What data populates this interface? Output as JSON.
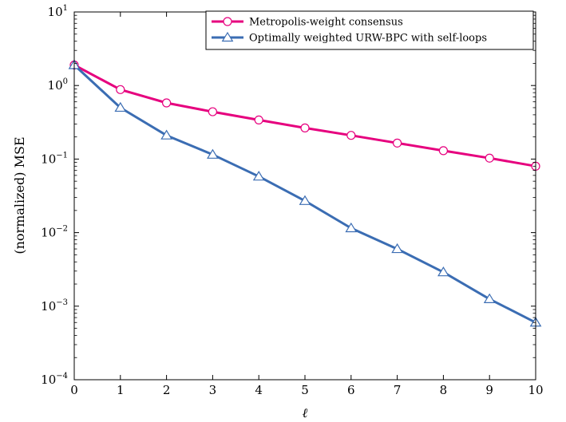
{
  "chart_data": {
    "type": "line",
    "title": "",
    "xlabel": "ℓ",
    "ylabel": "(normalized) MSE",
    "x": [
      0,
      1,
      2,
      3,
      4,
      5,
      6,
      7,
      8,
      9,
      10
    ],
    "xlim": [
      0,
      10
    ],
    "ylim": [
      0.0001,
      10
    ],
    "yscale": "log",
    "grid": false,
    "legend_position": "top-right",
    "x_ticks": [
      "0",
      "1",
      "2",
      "3",
      "4",
      "5",
      "6",
      "7",
      "8",
      "9",
      "10"
    ],
    "y_ticks": [
      {
        "base": "10",
        "exp": "1"
      },
      {
        "base": "10",
        "exp": "0"
      },
      {
        "base": "10",
        "exp": "−1"
      },
      {
        "base": "10",
        "exp": "−2"
      },
      {
        "base": "10",
        "exp": "−3"
      },
      {
        "base": "10",
        "exp": "−4"
      }
    ],
    "series": [
      {
        "name": "Metropolis-weight consensus",
        "color": "#e6007e",
        "marker": "circle",
        "values": [
          1.9,
          0.88,
          0.58,
          0.44,
          0.34,
          0.265,
          0.21,
          0.165,
          0.13,
          0.103,
          0.08
        ]
      },
      {
        "name": "Optimally weighted URW-BPC with self-loops",
        "color": "#3b6db3",
        "marker": "triangle",
        "values": [
          1.9,
          0.5,
          0.21,
          0.115,
          0.058,
          0.027,
          0.0115,
          0.006,
          0.0029,
          0.00125,
          0.0006
        ]
      }
    ]
  }
}
